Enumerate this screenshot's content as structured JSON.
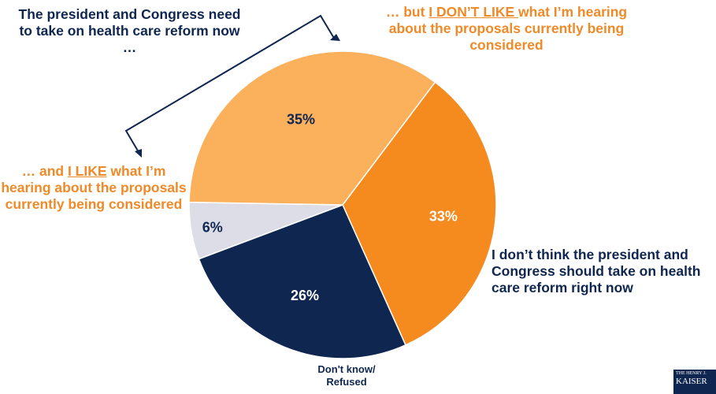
{
  "chart_data": {
    "type": "pie",
    "slices": [
      {
        "label": "but I DON'T LIKE what I'm hearing about the proposals currently being considered",
        "value": 33,
        "value_label": "33%",
        "color": "#f58a1f",
        "text_color": "#ffffff"
      },
      {
        "label": "I don't think the president and Congress should take on health care reform right now",
        "value": 26,
        "value_label": "26%",
        "color": "#0f2650",
        "text_color": "#ffffff"
      },
      {
        "label": "Don't know/ Refused",
        "value": 6,
        "value_label": "6%",
        "color": "#dcdde6",
        "text_color": "#0f2650"
      },
      {
        "label": "and I LIKE what I'm hearing about the proposals currently being considered",
        "value": 35,
        "value_label": "35%",
        "color": "#fbb05c",
        "text_color": "#0f2650"
      }
    ]
  },
  "labels": {
    "top_left": "The president and Congress need to take on health care reform now …",
    "top_right": {
      "pre": "… but ",
      "emph": "I DON’T LIKE ",
      "post": "what I’m hearing about the proposals currently being considered"
    },
    "left": {
      "pre": "… and ",
      "emph": "I LIKE",
      "post": " what I’m hearing about the proposals currently being considered"
    },
    "right": "I don’t think the president and Congress should take on health care reform right now",
    "bottom": "Don't know/ Refused"
  },
  "logo": {
    "line1": "THE HENRY J.",
    "line2": "KAISER"
  }
}
